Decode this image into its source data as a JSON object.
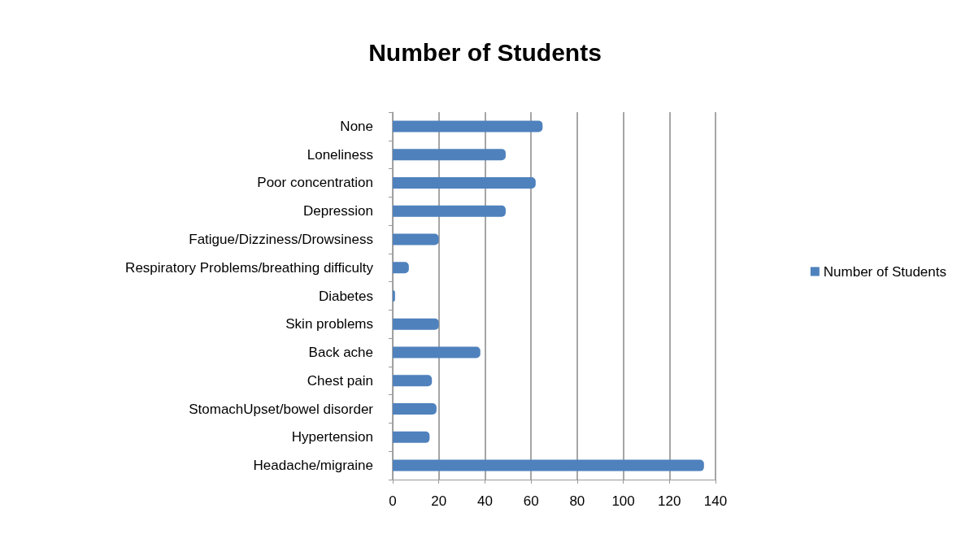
{
  "chart_data": {
    "type": "bar",
    "orientation": "horizontal",
    "title": "Number of Students",
    "categories": [
      "None",
      "Loneliness",
      "Poor concentration",
      "Depression",
      "Fatigue/Dizziness/Drowsiness",
      "Respiratory Problems/breathing difficulty",
      "Diabetes",
      "Skin problems",
      "Back ache",
      "Chest pain",
      "StomachUpset/bowel disorder",
      "Hypertension",
      "Headache/migraine"
    ],
    "series": [
      {
        "name": "Number of Students",
        "color": "#4f81bd",
        "values": [
          65,
          49,
          62,
          49,
          20,
          7,
          1,
          20,
          38,
          17,
          19,
          16,
          135
        ]
      }
    ],
    "xlim": [
      0,
      140
    ],
    "xticks": [
      0,
      20,
      40,
      60,
      80,
      100,
      120,
      140
    ],
    "grid": "x",
    "legend": "right"
  }
}
